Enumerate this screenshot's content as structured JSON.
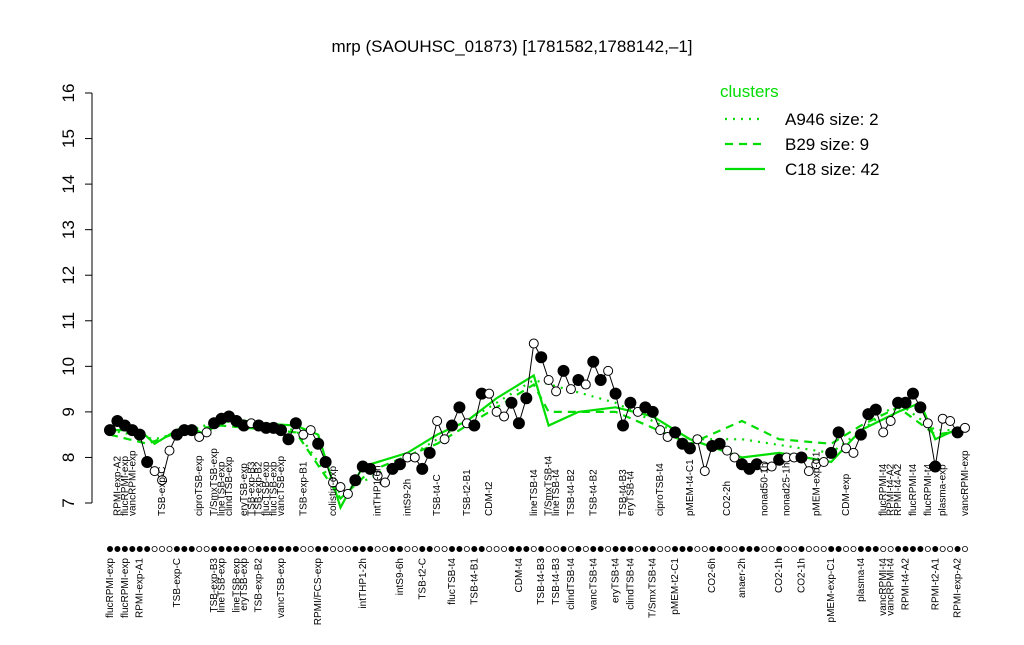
{
  "chart_data": {
    "type": "line",
    "title": "mrp (SAOUHSC_01873) [1781582,1788142,–1]",
    "ylim": [
      7,
      16
    ],
    "yticks": [
      7,
      8,
      9,
      10,
      11,
      12,
      13,
      14,
      15,
      16
    ],
    "legend_title": "clusters",
    "legend_position": "top-right",
    "categories": [
      "flucRPMI-exp",
      null,
      "flucRPMI-exp",
      null,
      "RPMI-exp-A1",
      null,
      null,
      null,
      null,
      "TSB-exp-C",
      null,
      null,
      null,
      null,
      "TSB-exp-B3",
      "lineTSB-exp",
      null,
      "lineTSB-exp",
      "eryTSB-exp",
      null,
      "TSB-exp-B2",
      null,
      null,
      "vancTSB-exp",
      null,
      null,
      null,
      null,
      "RPMI/FCS-exp",
      null,
      null,
      null,
      null,
      null,
      "intTHP1-2h",
      null,
      null,
      null,
      null,
      "intS9-6h",
      null,
      null,
      "TSB-t2-C",
      null,
      null,
      null,
      "flucTSB-t4",
      null,
      null,
      "TSB-t4-B1",
      null,
      null,
      null,
      null,
      null,
      "CDM-t4",
      null,
      null,
      "TSB-t4-B3",
      null,
      "TSB-t4-B3",
      null,
      "clindTSB-t4",
      null,
      null,
      "vancTSB-t4",
      null,
      null,
      "eryTSB-t4",
      null,
      "clindTSB-t4",
      null,
      null,
      "T/SmxTSB-t4",
      null,
      null,
      "pMEM-t2-C1",
      null,
      null,
      null,
      null,
      "CO2-6h",
      null,
      null,
      null,
      "anaer-2h",
      null,
      null,
      null,
      null,
      "CO2-1h",
      null,
      null,
      "CO2-1h",
      null,
      null,
      null,
      "pMEM-exp-C1",
      null,
      null,
      null,
      "plasma-t4",
      null,
      null,
      "vancRPMI-t4",
      "vancRPMI-t4",
      null,
      "RPMI-t4-A2",
      null,
      null,
      null,
      "RPMI-t2-A1",
      null,
      null,
      "RPMI-exp-A2",
      null
    ],
    "upper_labels": [
      null,
      "RPMI-exp-A2",
      "flucRPMI-exp",
      "vancRPMI-exp",
      null,
      null,
      null,
      "TSB-exp-C",
      null,
      null,
      null,
      null,
      "ciproTSB-exp",
      null,
      "T/SmxTSB-exp",
      "lineTSB-exp",
      "clindTSB-exp",
      null,
      "eryTSB-exp",
      "TSB-exp-B3",
      "TSB-exp-B2",
      "flucTSB-exp",
      "flucTSB-exp",
      "vancTSB-exp",
      null,
      null,
      "TSB-exp-B1",
      null,
      null,
      null,
      "colistin-exp",
      null,
      null,
      null,
      null,
      null,
      "intTHP1-6h",
      null,
      null,
      null,
      "intS9-2h",
      null,
      null,
      null,
      "TSB-t4-C",
      null,
      null,
      null,
      "TSB-t2-B1",
      null,
      null,
      "CDM-t2",
      null,
      null,
      null,
      null,
      null,
      "lineTSB-t4",
      null,
      "T/SmxTSB-t4",
      "lineTSB-t4",
      null,
      "TSB-t4-B2",
      null,
      null,
      "TSB-t4-B2",
      null,
      null,
      null,
      "TSB-t4-B3",
      "eryTSB-t4",
      null,
      null,
      null,
      "ciproTSB-t4",
      null,
      null,
      null,
      "pMEM-t4-C1",
      null,
      null,
      null,
      null,
      "CO2-2h",
      null,
      null,
      null,
      null,
      "nonad50-1h",
      null,
      null,
      "nonad25-1h",
      null,
      null,
      null,
      "pMEM-exp-C1",
      null,
      null,
      null,
      "CDM-exp",
      null,
      null,
      null,
      null,
      "flucRPMI-t4",
      "RPMI-t4-A2",
      "RPMI-t4-A2",
      null,
      "flucRPMI-t4",
      null,
      "flucRPMI-t4",
      null,
      "plasma-exp",
      null,
      null,
      "vancRPMI-exp"
    ],
    "values": [
      8.6,
      8.8,
      8.7,
      8.6,
      8.5,
      7.9,
      7.7,
      7.5,
      8.15,
      8.5,
      8.6,
      8.6,
      8.45,
      8.55,
      8.75,
      8.85,
      8.9,
      8.8,
      8.7,
      8.75,
      8.7,
      8.65,
      8.65,
      8.6,
      8.4,
      8.75,
      8.5,
      8.6,
      8.3,
      7.9,
      7.45,
      7.35,
      7.2,
      7.5,
      7.8,
      7.75,
      7.6,
      7.45,
      7.75,
      7.85,
      8.0,
      8.0,
      7.75,
      8.1,
      8.8,
      8.4,
      8.7,
      9.1,
      8.75,
      8.7,
      9.4,
      9.4,
      9.0,
      8.9,
      9.2,
      8.75,
      9.3,
      10.5,
      10.2,
      9.7,
      9.45,
      9.9,
      9.5,
      9.7,
      9.6,
      10.1,
      9.7,
      9.9,
      9.4,
      8.7,
      9.2,
      9.0,
      9.1,
      9.0,
      8.6,
      8.45,
      8.55,
      8.3,
      8.2,
      8.4,
      7.7,
      8.25,
      8.3,
      8.15,
      8.0,
      7.85,
      7.75,
      7.85,
      7.8,
      7.8,
      7.95,
      8.0,
      8.0,
      8.0,
      7.7,
      7.85,
      7.9,
      8.1,
      8.55,
      8.2,
      8.1,
      8.5,
      8.95,
      9.05,
      8.55,
      8.8,
      9.2,
      9.2,
      9.4,
      9.1,
      8.75,
      7.8,
      8.85,
      8.8,
      8.55,
      8.65
    ],
    "color": "#000000",
    "hollow_points": [
      6,
      7,
      8,
      12,
      13,
      19,
      26,
      27,
      30,
      31,
      32,
      36,
      37,
      40,
      41,
      44,
      45,
      48,
      51,
      52,
      53,
      57,
      59,
      60,
      62,
      64,
      67,
      71,
      74,
      75,
      79,
      80,
      83,
      84,
      88,
      89,
      91,
      92,
      94,
      95,
      96,
      99,
      100,
      104,
      105,
      110,
      112,
      113,
      115
    ],
    "series": [
      {
        "name": "A946 size: 2",
        "color": "#00dd00",
        "line_style": "dotted",
        "x": [
          0,
          6,
          15,
          25,
          31,
          40,
          52,
          57,
          68,
          78,
          85,
          97,
          106,
          111,
          115
        ],
        "values": [
          8.6,
          8.4,
          8.8,
          8.6,
          7.2,
          8.0,
          9.2,
          9.7,
          9.2,
          8.4,
          8.4,
          8.1,
          9.2,
          8.6,
          8.6
        ]
      },
      {
        "name": "B29 size: 9",
        "color": "#00dd00",
        "line_style": "dashed",
        "x": [
          0,
          5,
          10,
          15,
          25,
          31,
          35,
          44,
          52,
          57,
          59,
          68,
          78,
          85,
          90,
          97,
          101,
          106,
          111,
          115
        ],
        "values": [
          8.5,
          8.3,
          8.6,
          8.7,
          8.55,
          7.1,
          7.7,
          8.3,
          9.1,
          9.6,
          9.0,
          9.0,
          8.3,
          8.8,
          8.4,
          8.3,
          8.7,
          9.1,
          8.5,
          8.6
        ]
      },
      {
        "name": "C18 size: 42",
        "color": "#00dd00",
        "line_style": "solid",
        "x": [
          0,
          4,
          6,
          10,
          13,
          15,
          20,
          25,
          28,
          31,
          34,
          40,
          44,
          48,
          52,
          57,
          59,
          63,
          68,
          73,
          78,
          85,
          90,
          97,
          101,
          106,
          109,
          111,
          115
        ],
        "values": [
          8.6,
          8.6,
          8.3,
          8.7,
          8.5,
          8.9,
          8.75,
          8.7,
          8.5,
          6.9,
          7.8,
          8.1,
          8.5,
          8.8,
          9.3,
          9.8,
          8.7,
          9.0,
          9.1,
          8.9,
          8.4,
          8.0,
          8.1,
          7.9,
          8.6,
          9.0,
          9.2,
          8.4,
          8.7
        ]
      }
    ]
  }
}
